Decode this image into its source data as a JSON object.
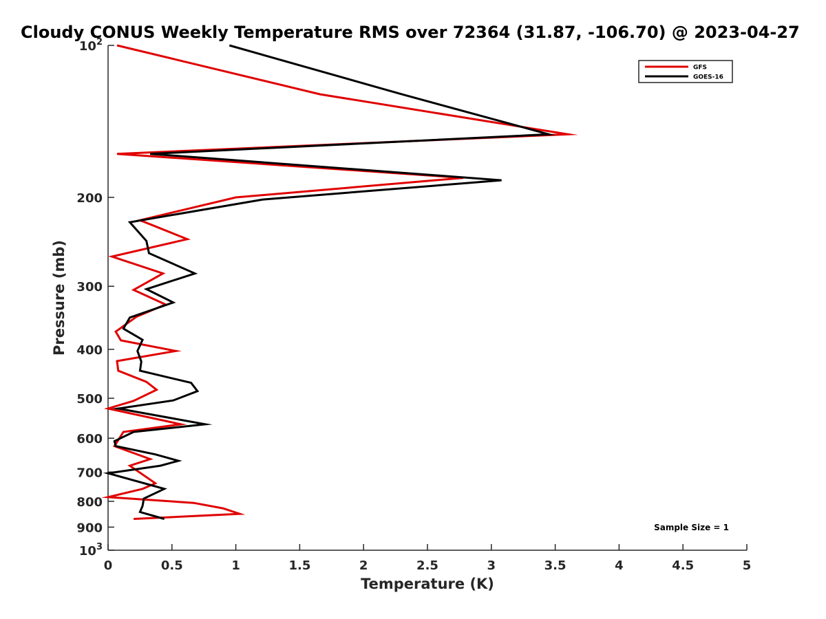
{
  "chart_data": {
    "type": "line",
    "title": "Cloudy CONUS Weekly Temperature RMS over 72364 (31.87, -106.70) @ 2023-04-27",
    "xlabel": "Temperature (K)",
    "ylabel": "Pressure (mb)",
    "xlim": [
      0,
      5
    ],
    "ylim": [
      100,
      1000
    ],
    "yscale": "log",
    "y_reversed": true,
    "grid": false,
    "legend_position": "top-right",
    "x_ticks": [
      0,
      0.5,
      1,
      1.5,
      2,
      2.5,
      3,
      3.5,
      4,
      4.5,
      5
    ],
    "x_tick_labels": [
      "0",
      "0.5",
      "1",
      "1.5",
      "2",
      "2.5",
      "3",
      "3.5",
      "4",
      "4.5",
      "5"
    ],
    "y_ticks": [
      100,
      200,
      300,
      400,
      500,
      600,
      700,
      800,
      900,
      1000
    ],
    "y_tick_labels": [
      {
        "base": "10",
        "exp": "2"
      },
      {
        "base": "200"
      },
      {
        "base": "300"
      },
      {
        "base": "400"
      },
      {
        "base": "500"
      },
      {
        "base": "600"
      },
      {
        "base": "700"
      },
      {
        "base": "800"
      },
      {
        "base": "900"
      },
      {
        "base": "10",
        "exp": "3"
      }
    ],
    "annotation": "Sample Size = 1",
    "series": [
      {
        "name": "GFS",
        "color": "#e00000",
        "points": [
          [
            0.07,
            100
          ],
          [
            1.66,
            125
          ],
          [
            3.6,
            150
          ],
          [
            0.07,
            164
          ],
          [
            2.78,
            183
          ],
          [
            1.0,
            200
          ],
          [
            0.25,
            222
          ],
          [
            0.62,
            242
          ],
          [
            0.03,
            262
          ],
          [
            0.43,
            283
          ],
          [
            0.2,
            305
          ],
          [
            0.45,
            326
          ],
          [
            0.22,
            345
          ],
          [
            0.06,
            369
          ],
          [
            0.1,
            384
          ],
          [
            0.53,
            403
          ],
          [
            0.07,
            422
          ],
          [
            0.08,
            441
          ],
          [
            0.3,
            464
          ],
          [
            0.38,
            481
          ],
          [
            0.2,
            506
          ],
          [
            0.0,
            524
          ],
          [
            0.57,
            563
          ],
          [
            0.12,
            583
          ],
          [
            0.05,
            622
          ],
          [
            0.33,
            660
          ],
          [
            0.17,
            680
          ],
          [
            0.37,
            737
          ],
          [
            0.27,
            756
          ],
          [
            0.0,
            785
          ],
          [
            0.67,
            806
          ],
          [
            0.9,
            826
          ],
          [
            1.03,
            847
          ],
          [
            0.2,
            867
          ]
        ]
      },
      {
        "name": "GOES-16",
        "color": "#000000",
        "points": [
          [
            0.95,
            100
          ],
          [
            2.3,
            125
          ],
          [
            3.45,
            150
          ],
          [
            0.33,
            164
          ],
          [
            3.08,
            185
          ],
          [
            1.21,
            202
          ],
          [
            0.17,
            224
          ],
          [
            0.3,
            244
          ],
          [
            0.32,
            258
          ],
          [
            0.68,
            283
          ],
          [
            0.3,
            304
          ],
          [
            0.51,
            323
          ],
          [
            0.17,
            346
          ],
          [
            0.12,
            364
          ],
          [
            0.27,
            383
          ],
          [
            0.23,
            403
          ],
          [
            0.26,
            423
          ],
          [
            0.25,
            441
          ],
          [
            0.65,
            466
          ],
          [
            0.7,
            484
          ],
          [
            0.51,
            505
          ],
          [
            0.08,
            524
          ],
          [
            0.76,
            563
          ],
          [
            0.2,
            583
          ],
          [
            0.05,
            608
          ],
          [
            0.06,
            622
          ],
          [
            0.37,
            646
          ],
          [
            0.55,
            665
          ],
          [
            0.41,
            680
          ],
          [
            0.0,
            704
          ],
          [
            0.44,
            756
          ],
          [
            0.28,
            790
          ],
          [
            0.27,
            817
          ],
          [
            0.25,
            840
          ],
          [
            0.44,
            867
          ]
        ]
      }
    ]
  }
}
